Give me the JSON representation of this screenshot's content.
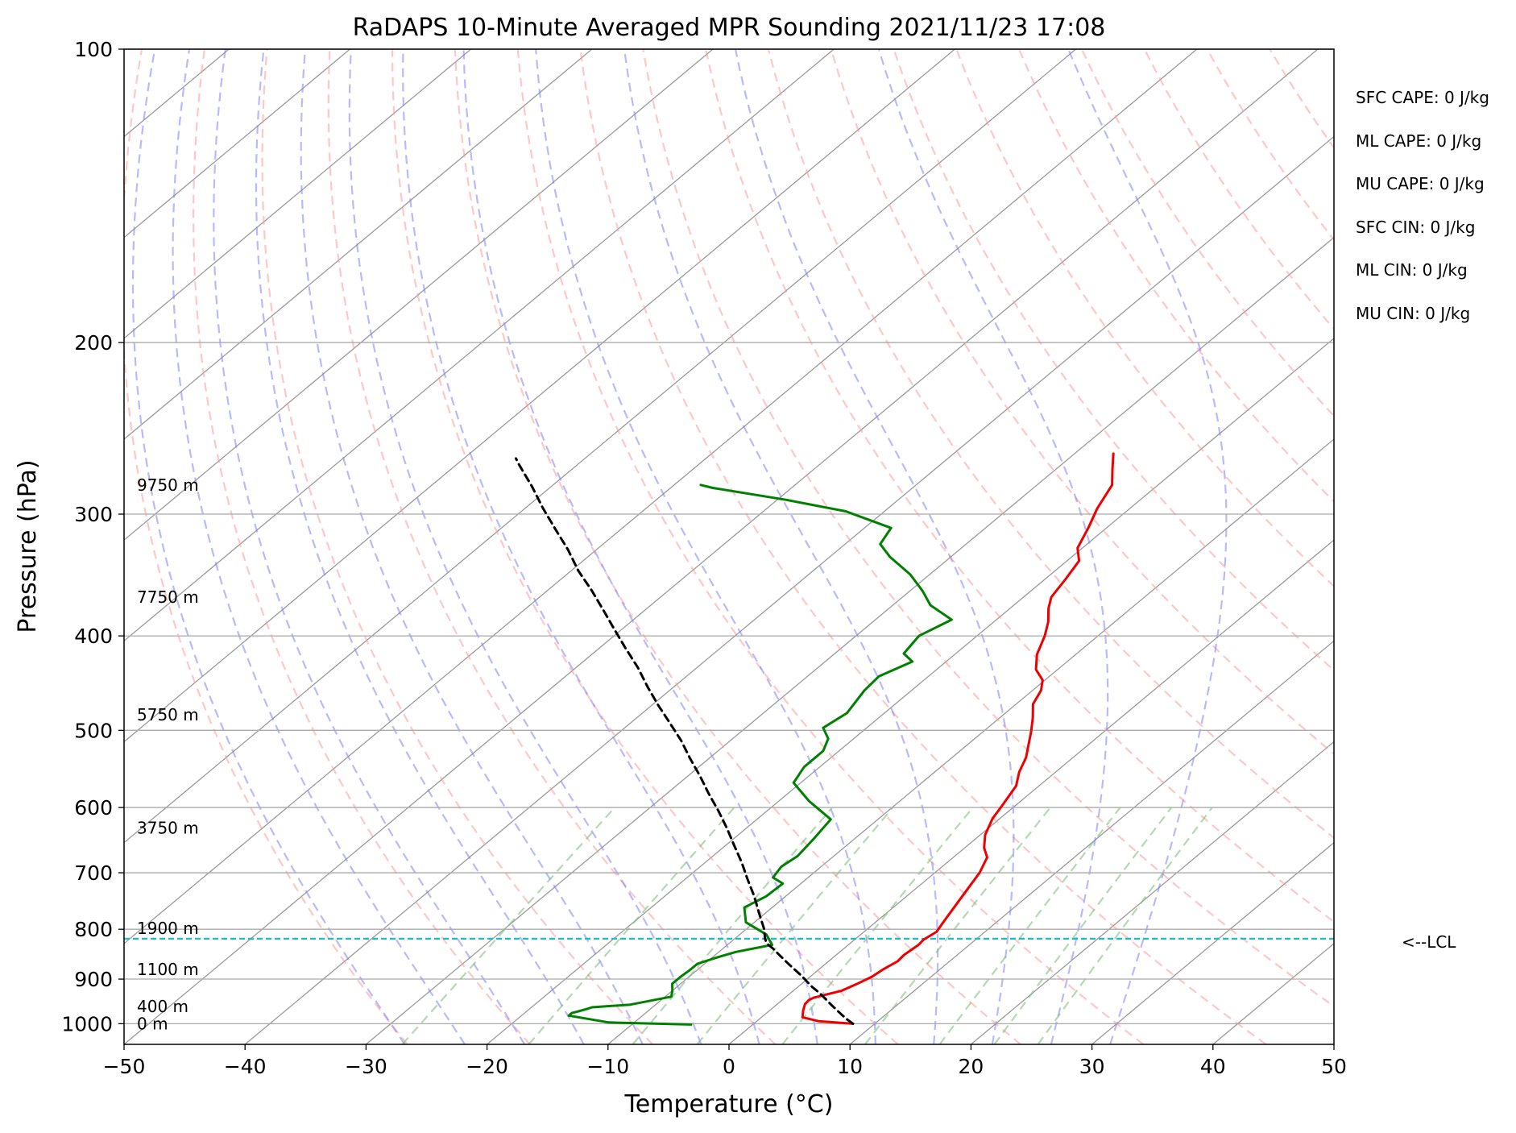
{
  "chart_data": {
    "type": "line",
    "title": "RaDAPS 10-Minute Averaged MPR Sounding 2021/11/23 17:08",
    "xlabel": "Temperature (°C)",
    "ylabel": "Pressure (hPa)",
    "xlim": [
      -50,
      50
    ],
    "ylim": [
      1050,
      100
    ],
    "y_scale": "log",
    "skew_t": true,
    "grid": true,
    "x_ticks": [
      -50,
      -40,
      -30,
      -20,
      -10,
      0,
      10,
      20,
      30,
      40,
      50
    ],
    "x_tick_labels": [
      "−50",
      "−40",
      "−30",
      "−20",
      "−10",
      "0",
      "10",
      "20",
      "30",
      "40",
      "50"
    ],
    "y_ticks": [
      100,
      200,
      300,
      400,
      500,
      600,
      700,
      800,
      900,
      1000
    ],
    "y_tick_labels": [
      "100",
      "200",
      "300",
      "400",
      "500",
      "600",
      "700",
      "800",
      "900",
      "1000"
    ],
    "colors": {
      "temperature": "#ee0000",
      "dewpoint": "#008000",
      "parcel": "#000000",
      "lcl": "#17becf",
      "dry_adiabat": "#ff9999",
      "moist_adiabat": "#8080ff",
      "mixing_ratio": "#80c080",
      "isotherm": "#999999"
    },
    "series": [
      {
        "key": "temperature",
        "points": [
          [
            8.2,
            1000
          ],
          [
            5.1,
            994
          ],
          [
            3.4,
            985
          ],
          [
            2.8,
            970
          ],
          [
            2.3,
            955
          ],
          [
            2.2,
            945
          ],
          [
            2.4,
            940
          ],
          [
            4.0,
            925
          ],
          [
            4.6,
            910
          ],
          [
            5.1,
            895
          ],
          [
            5.3,
            880
          ],
          [
            5.7,
            863
          ],
          [
            5.6,
            850
          ],
          [
            5.8,
            830
          ],
          [
            5.7,
            820
          ],
          [
            6.0,
            805
          ],
          [
            5.5,
            782
          ],
          [
            4.6,
            740
          ],
          [
            3.7,
            700
          ],
          [
            2.8,
            675
          ],
          [
            1.6,
            660
          ],
          [
            0.4,
            640
          ],
          [
            -0.6,
            616
          ],
          [
            -1.1,
            597
          ],
          [
            -1.9,
            570
          ],
          [
            -3.0,
            552
          ],
          [
            -3.9,
            533
          ],
          [
            -4.9,
            518
          ],
          [
            -6.0,
            502
          ],
          [
            -7.3,
            485
          ],
          [
            -8.6,
            470
          ],
          [
            -9.3,
            455
          ],
          [
            -10.2,
            444
          ],
          [
            -11.8,
            433
          ],
          [
            -13.2,
            418
          ],
          [
            -14.4,
            400
          ],
          [
            -15.5,
            387
          ],
          [
            -16.8,
            375
          ],
          [
            -17.7,
            365
          ],
          [
            -18.3,
            350
          ],
          [
            -19.0,
            335
          ],
          [
            -20.4,
            325
          ],
          [
            -21.5,
            310
          ],
          [
            -22.7,
            296
          ],
          [
            -23.8,
            280
          ],
          [
            -25.3,
            270
          ],
          [
            -26.8,
            260
          ]
        ]
      },
      {
        "key": "dewpoint",
        "points": [
          [
            -5.1,
            1002
          ],
          [
            -12.1,
            997
          ],
          [
            -16.1,
            981
          ],
          [
            -16.1,
            975
          ],
          [
            -15.8,
            972
          ],
          [
            -15.2,
            965
          ],
          [
            -15.0,
            962
          ],
          [
            -12.1,
            956
          ],
          [
            -9.5,
            938
          ],
          [
            -10.0,
            925
          ],
          [
            -10.7,
            910
          ],
          [
            -10.7,
            895
          ],
          [
            -10.6,
            880
          ],
          [
            -10.6,
            868
          ],
          [
            -9.6,
            855
          ],
          [
            -8.6,
            844
          ],
          [
            -6.3,
            830
          ],
          [
            -7.8,
            810
          ],
          [
            -10.7,
            787
          ],
          [
            -12.3,
            760
          ],
          [
            -11.6,
            740
          ],
          [
            -11.5,
            718
          ],
          [
            -12.9,
            708
          ],
          [
            -13.3,
            690
          ],
          [
            -13.0,
            673
          ],
          [
            -13.4,
            645
          ],
          [
            -13.9,
            617
          ],
          [
            -17.5,
            591
          ],
          [
            -20.6,
            566
          ],
          [
            -21.3,
            545
          ],
          [
            -21.3,
            525
          ],
          [
            -22.1,
            510
          ],
          [
            -23.6,
            497
          ],
          [
            -23.1,
            480
          ],
          [
            -23.9,
            455
          ],
          [
            -24.1,
            440
          ],
          [
            -22.8,
            425
          ],
          [
            -24.3,
            417
          ],
          [
            -24.8,
            400
          ],
          [
            -23.7,
            385
          ],
          [
            -26.9,
            372
          ],
          [
            -28.9,
            360
          ],
          [
            -31.6,
            346
          ],
          [
            -35.0,
            332
          ],
          [
            -37.1,
            322
          ],
          [
            -37.8,
            310
          ],
          [
            -43.2,
            298
          ],
          [
            -49.3,
            290
          ],
          [
            -56.5,
            282
          ],
          [
            -57.8,
            280
          ]
        ]
      },
      {
        "key": "parcel",
        "points": [
          [
            8.2,
            1000
          ],
          [
            7.3,
            990
          ],
          [
            6.3,
            978
          ],
          [
            5.4,
            967
          ],
          [
            4.5,
            956
          ],
          [
            3.3,
            941
          ],
          [
            2.3,
            929
          ],
          [
            1.2,
            917
          ],
          [
            0.2,
            905
          ],
          [
            -0.8,
            893
          ],
          [
            -1.8,
            882
          ],
          [
            -2.9,
            870
          ],
          [
            -3.8,
            860
          ],
          [
            -4.8,
            849
          ],
          [
            -5.8,
            838
          ],
          [
            -6.9,
            827
          ],
          [
            -7.5,
            818
          ],
          [
            -8.5,
            800
          ],
          [
            -10.6,
            769
          ],
          [
            -12.6,
            740
          ],
          [
            -14.9,
            710
          ],
          [
            -17.0,
            683
          ],
          [
            -19.4,
            655
          ],
          [
            -21.7,
            629
          ],
          [
            -24.1,
            604
          ],
          [
            -26.6,
            580
          ],
          [
            -29.0,
            557
          ],
          [
            -31.6,
            534
          ],
          [
            -34.1,
            512
          ],
          [
            -36.8,
            491
          ],
          [
            -39.5,
            471
          ],
          [
            -42.2,
            451
          ],
          [
            -44.9,
            431
          ],
          [
            -47.8,
            412
          ],
          [
            -50.6,
            394
          ],
          [
            -53.5,
            376
          ],
          [
            -56.4,
            359
          ],
          [
            -59.4,
            343
          ],
          [
            -62.4,
            326
          ],
          [
            -65.4,
            311
          ],
          [
            -68.5,
            296
          ],
          [
            -71.6,
            281
          ],
          [
            -74.8,
            267
          ],
          [
            -75.7,
            263
          ]
        ]
      }
    ],
    "lcl_pressure": 818,
    "lcl_label": "<--LCL",
    "height_labels": [
      {
        "text": "0 m",
        "p": 1000
      },
      {
        "text": "400 m",
        "p": 960
      },
      {
        "text": "1100 m",
        "p": 880
      },
      {
        "text": "1900 m",
        "p": 798
      },
      {
        "text": "3750 m",
        "p": 630
      },
      {
        "text": "5750 m",
        "p": 482
      },
      {
        "text": "7750 m",
        "p": 365
      },
      {
        "text": "9750 m",
        "p": 280
      }
    ],
    "indices": [
      "SFC CAPE: 0 J/kg",
      "ML CAPE: 0 J/kg",
      "MU CAPE: 0 J/kg",
      "SFC CIN: 0 J/kg",
      "ML CIN: 0 J/kg",
      "MU CIN: 0 J/kg"
    ],
    "dry_adiabats_theta_c": [
      -30,
      -20,
      -10,
      0,
      10,
      20,
      30,
      40,
      50,
      60,
      70,
      80,
      90,
      100,
      110,
      120,
      130,
      140,
      150
    ],
    "moist_adiabats_thetaw_c": [
      -30,
      -25,
      -20,
      -15,
      -10,
      -5,
      0,
      5,
      10,
      15,
      20,
      25,
      30
    ],
    "mixing_ratios_gkg": [
      0.4,
      1,
      2,
      3,
      5,
      8,
      12,
      16,
      20
    ]
  }
}
